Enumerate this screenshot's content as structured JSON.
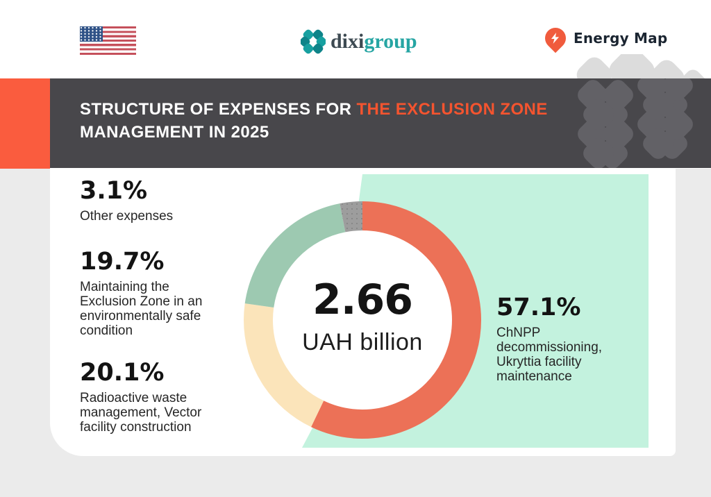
{
  "header": {
    "flag": "united-states",
    "brand_part1": "dixi",
    "brand_part2": "group",
    "partner": "Energy Map"
  },
  "banner": {
    "line1_normal": "STRUCTURE OF EXPENSES FOR ",
    "line1_accent": "THE EXCLUSION ZONE",
    "line2": "MANAGEMENT IN 2025",
    "accent_color": "#f4542f",
    "band_color": "#48474b",
    "left_block_color": "#fa5c3e"
  },
  "chart_data": {
    "type": "pie",
    "donut": true,
    "title": "Structure of expenses for the Exclusion Zone management in 2025",
    "center_value": "2.66",
    "center_unit": "UAH billion",
    "start_angle": "top",
    "direction": "clockwise",
    "ring_mid_radius": 150,
    "ring_thickness": 42,
    "segments": [
      {
        "label": "ChNPP decommissioning, Ukryttia facility maintenance",
        "value": 57.1,
        "color": "#ec7157"
      },
      {
        "label": "Radioactive waste management, Vector facility construction",
        "value": 20.1,
        "color": "#fbe4ba"
      },
      {
        "label": "Maintaining the Exclusion Zone in an environmentally safe condition",
        "value": 19.7,
        "color": "#9dc9b1"
      },
      {
        "label": "Other expenses",
        "value": 3.1,
        "color": "#9d9d9d",
        "texture": "dots"
      }
    ]
  },
  "callouts": {
    "left": [
      {
        "pct": "3.1%",
        "text": "Other expenses"
      },
      {
        "pct": "19.7%",
        "text": "Maintaining the Exclusion Zone in an environmentally safe condition"
      },
      {
        "pct": "20.1%",
        "text": "Radioactive waste management, Vector facility construction"
      }
    ],
    "right": {
      "pct": "57.1%",
      "text": "ChNPP decommissioning, Ukryttia facility maintenance"
    }
  },
  "colors": {
    "mint_panel": "#c3f2de",
    "page_bottom_bg": "#ebebeb",
    "card_bg": "#ffffff"
  }
}
